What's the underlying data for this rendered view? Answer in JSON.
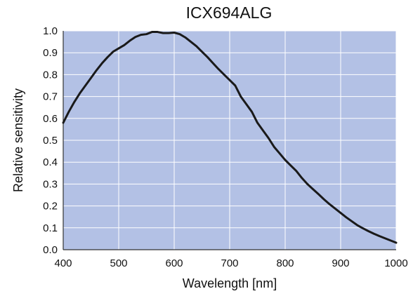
{
  "chart_data": {
    "type": "line",
    "title": "ICX694ALG",
    "xlabel": "Wavelength [nm]",
    "ylabel": "Relative sensitivity",
    "xlim": [
      400,
      1000
    ],
    "ylim": [
      0,
      1.0
    ],
    "x_ticks": [
      "400",
      "500",
      "600",
      "700",
      "800",
      "900",
      "1000"
    ],
    "y_ticks": [
      "0.0",
      "0.1",
      "0.2",
      "0.3",
      "0.4",
      "0.5",
      "0.6",
      "0.7",
      "0.8",
      "0.9",
      "1.0"
    ],
    "grid": true,
    "colors": {
      "plot_background": "#b3c1e5",
      "grid": "#ffffff",
      "line": "#1a1a1a"
    },
    "series": [
      {
        "x": [
          400,
          410,
          420,
          430,
          440,
          450,
          460,
          470,
          480,
          490,
          500,
          510,
          520,
          530,
          540,
          550,
          560,
          570,
          580,
          590,
          600,
          610,
          620,
          630,
          640,
          650,
          660,
          670,
          680,
          690,
          700,
          710,
          720,
          730,
          740,
          750,
          760,
          770,
          780,
          790,
          800,
          810,
          820,
          830,
          840,
          850,
          860,
          870,
          880,
          890,
          900,
          910,
          920,
          930,
          940,
          950,
          960,
          970,
          980,
          990,
          1000
        ],
        "y": [
          0.58,
          0.63,
          0.675,
          0.715,
          0.75,
          0.785,
          0.82,
          0.852,
          0.88,
          0.905,
          0.92,
          0.935,
          0.955,
          0.972,
          0.982,
          0.985,
          0.995,
          0.995,
          0.99,
          0.99,
          0.992,
          0.985,
          0.97,
          0.95,
          0.93,
          0.905,
          0.88,
          0.852,
          0.825,
          0.8,
          0.775,
          0.75,
          0.7,
          0.665,
          0.63,
          0.58,
          0.545,
          0.51,
          0.47,
          0.44,
          0.41,
          0.385,
          0.36,
          0.328,
          0.3,
          0.277,
          0.254,
          0.23,
          0.208,
          0.188,
          0.168,
          0.148,
          0.13,
          0.112,
          0.098,
          0.085,
          0.073,
          0.062,
          0.052,
          0.042,
          0.032
        ]
      }
    ]
  }
}
